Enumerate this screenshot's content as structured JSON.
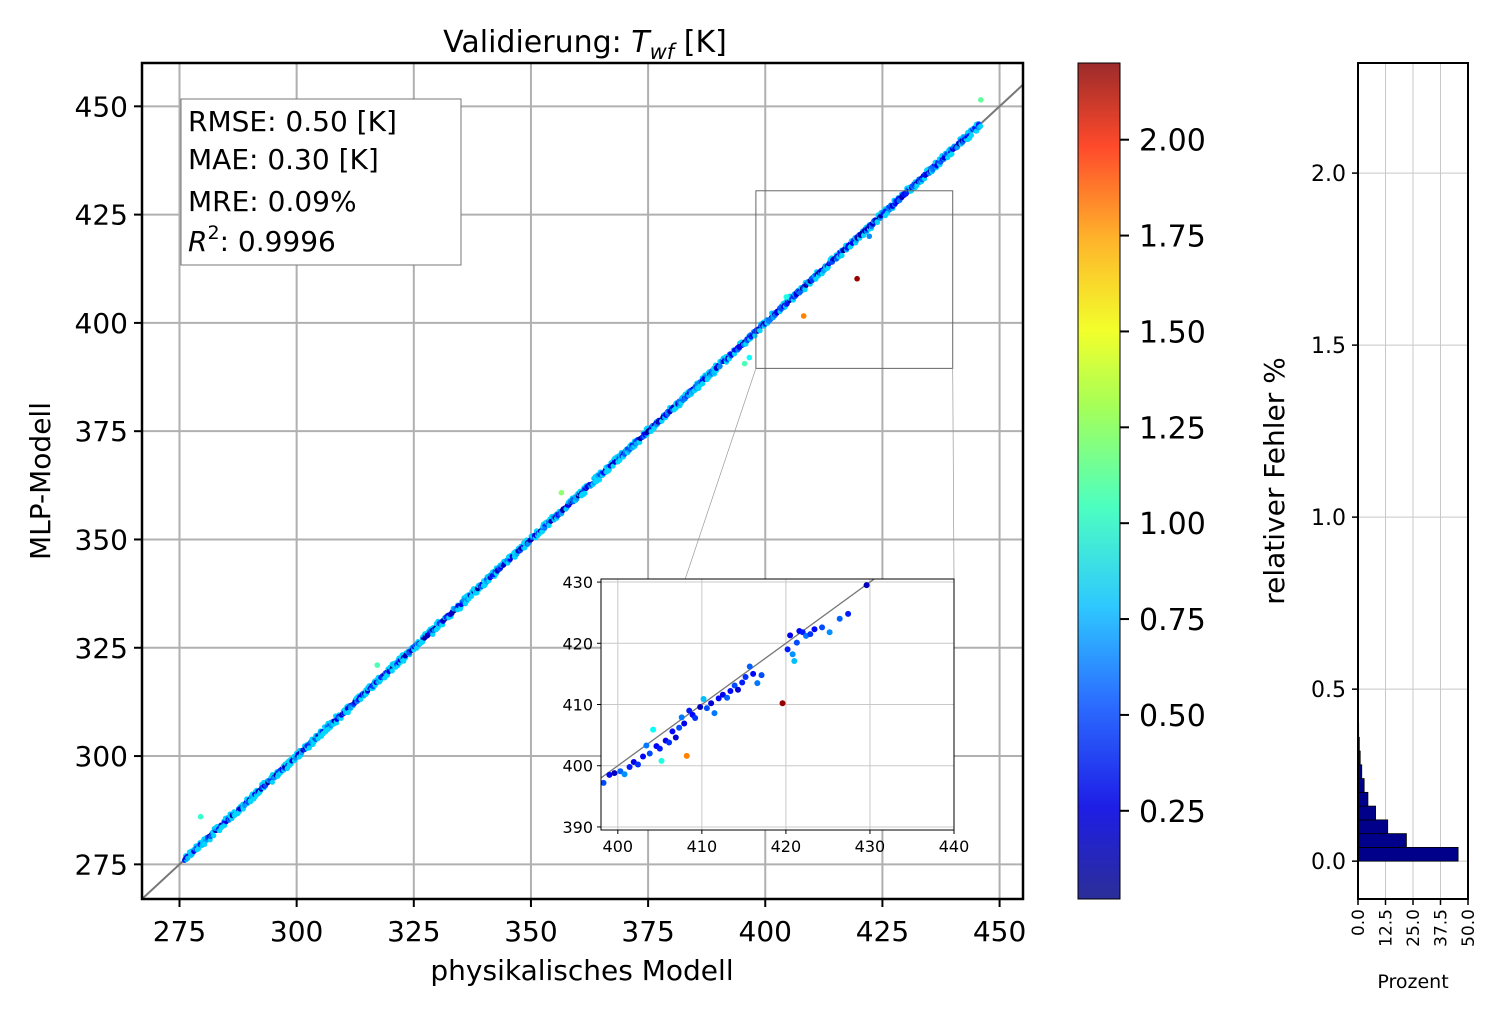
{
  "chart_data": [
    {
      "type": "scatter",
      "title_prefix": "Validierung: ",
      "title_var": "T",
      "title_sub": "wf",
      "title_suffix": " [K]",
      "xlabel": "physikalisches Modell",
      "ylabel": "MLP-Modell",
      "xlim": [
        267,
        455
      ],
      "ylim": [
        267,
        460
      ],
      "xticks": [
        275,
        300,
        325,
        350,
        375,
        400,
        425,
        450
      ],
      "yticks": [
        275,
        300,
        325,
        350,
        375,
        400,
        425,
        450
      ],
      "grid": true,
      "identity_line": true,
      "stats": {
        "rmse": "RMSE: 0.50 [K]",
        "mae": "MAE: 0.30 [K]",
        "mre": "MRE: 0.09%",
        "r2_symbol": "R",
        "r2_exp": "2",
        "r2_value": ": 0.9996"
      },
      "outliers": [
        {
          "x": 419.6,
          "y": 410.2,
          "c": 2.15
        },
        {
          "x": 408.2,
          "y": 401.6,
          "c": 1.65
        },
        {
          "x": 446.0,
          "y": 451.5,
          "c": 1.05
        },
        {
          "x": 395.6,
          "y": 390.6,
          "c": 1.0
        },
        {
          "x": 356.5,
          "y": 360.8,
          "c": 1.15
        },
        {
          "x": 317.2,
          "y": 321.0,
          "c": 1.0
        },
        {
          "x": 279.5,
          "y": 286.0,
          "c": 0.95
        },
        {
          "x": 404.5,
          "y": 406.0,
          "c": 0.9
        },
        {
          "x": 396.6,
          "y": 392.0,
          "c": 0.85
        },
        {
          "x": 422.2,
          "y": 420.0,
          "c": 0.6
        }
      ],
      "zoom_region": {
        "xlim": [
          398,
          440
        ],
        "ylim": [
          389.5,
          430.5
        ]
      }
    },
    {
      "type": "scatter",
      "role": "inset",
      "xlim": [
        398,
        440
      ],
      "ylim": [
        389.5,
        430.5
      ],
      "xticks": [
        400,
        410,
        420,
        430,
        440
      ],
      "yticks": [
        390,
        400,
        410,
        420,
        430
      ],
      "grid": true,
      "points": [
        {
          "x": 398.3,
          "y": 397.2,
          "c": 0.45
        },
        {
          "x": 399.0,
          "y": 398.5,
          "c": 0.3
        },
        {
          "x": 399.6,
          "y": 398.8,
          "c": 0.15
        },
        {
          "x": 400.3,
          "y": 399.1,
          "c": 0.5
        },
        {
          "x": 400.8,
          "y": 398.6,
          "c": 0.6
        },
        {
          "x": 401.4,
          "y": 399.8,
          "c": 0.35
        },
        {
          "x": 401.9,
          "y": 400.6,
          "c": 0.25
        },
        {
          "x": 402.4,
          "y": 400.2,
          "c": 0.4
        },
        {
          "x": 403.0,
          "y": 401.5,
          "c": 0.3
        },
        {
          "x": 403.4,
          "y": 403.3,
          "c": 0.55
        },
        {
          "x": 403.8,
          "y": 402.0,
          "c": 0.45
        },
        {
          "x": 404.2,
          "y": 405.9,
          "c": 0.85
        },
        {
          "x": 404.6,
          "y": 403.2,
          "c": 0.3
        },
        {
          "x": 405.0,
          "y": 402.8,
          "c": 0.35
        },
        {
          "x": 405.2,
          "y": 400.8,
          "c": 0.9
        },
        {
          "x": 405.7,
          "y": 404.1,
          "c": 0.25
        },
        {
          "x": 406.1,
          "y": 403.8,
          "c": 0.4
        },
        {
          "x": 406.5,
          "y": 405.6,
          "c": 0.3
        },
        {
          "x": 406.9,
          "y": 404.6,
          "c": 0.2
        },
        {
          "x": 407.3,
          "y": 406.2,
          "c": 0.45
        },
        {
          "x": 407.6,
          "y": 407.9,
          "c": 0.55
        },
        {
          "x": 407.9,
          "y": 406.9,
          "c": 0.25
        },
        {
          "x": 408.2,
          "y": 401.6,
          "c": 1.65
        },
        {
          "x": 408.5,
          "y": 409.0,
          "c": 0.35
        },
        {
          "x": 408.9,
          "y": 408.3,
          "c": 0.3
        },
        {
          "x": 409.2,
          "y": 407.8,
          "c": 0.4
        },
        {
          "x": 409.8,
          "y": 409.6,
          "c": 0.15
        },
        {
          "x": 410.2,
          "y": 410.9,
          "c": 0.7
        },
        {
          "x": 410.6,
          "y": 409.4,
          "c": 0.45
        },
        {
          "x": 411.1,
          "y": 410.2,
          "c": 0.2
        },
        {
          "x": 411.5,
          "y": 408.6,
          "c": 0.55
        },
        {
          "x": 412.0,
          "y": 411.0,
          "c": 0.3
        },
        {
          "x": 412.5,
          "y": 411.6,
          "c": 0.25
        },
        {
          "x": 413.0,
          "y": 411.1,
          "c": 0.5
        },
        {
          "x": 413.4,
          "y": 412.2,
          "c": 0.3
        },
        {
          "x": 413.9,
          "y": 413.1,
          "c": 0.45
        },
        {
          "x": 414.3,
          "y": 412.4,
          "c": 0.2
        },
        {
          "x": 414.8,
          "y": 413.6,
          "c": 0.35
        },
        {
          "x": 415.2,
          "y": 414.5,
          "c": 0.4
        },
        {
          "x": 415.7,
          "y": 416.2,
          "c": 0.5
        },
        {
          "x": 416.1,
          "y": 415.0,
          "c": 0.3
        },
        {
          "x": 416.6,
          "y": 413.5,
          "c": 0.55
        },
        {
          "x": 417.1,
          "y": 414.8,
          "c": 0.45
        },
        {
          "x": 419.6,
          "y": 410.2,
          "c": 2.15
        },
        {
          "x": 420.2,
          "y": 419.0,
          "c": 0.35
        },
        {
          "x": 420.5,
          "y": 421.3,
          "c": 0.25
        },
        {
          "x": 420.8,
          "y": 418.2,
          "c": 0.6
        },
        {
          "x": 421.0,
          "y": 417.1,
          "c": 0.7
        },
        {
          "x": 421.3,
          "y": 420.1,
          "c": 0.45
        },
        {
          "x": 421.6,
          "y": 422.0,
          "c": 0.3
        },
        {
          "x": 422.0,
          "y": 421.8,
          "c": 0.35
        },
        {
          "x": 422.4,
          "y": 421.2,
          "c": 0.55
        },
        {
          "x": 422.9,
          "y": 421.5,
          "c": 0.4
        },
        {
          "x": 423.4,
          "y": 422.3,
          "c": 0.3
        },
        {
          "x": 424.3,
          "y": 422.6,
          "c": 0.45
        },
        {
          "x": 425.2,
          "y": 421.8,
          "c": 0.6
        },
        {
          "x": 426.4,
          "y": 424.0,
          "c": 0.5
        },
        {
          "x": 427.4,
          "y": 424.8,
          "c": 0.35
        },
        {
          "x": 429.6,
          "y": 429.5,
          "c": 0.15
        }
      ]
    },
    {
      "type": "colorbar",
      "label": "relativer Fehler %",
      "range": [
        0.02,
        2.2
      ],
      "ticks": [
        "0.25",
        "0.50",
        "0.75",
        "1.00",
        "1.25",
        "1.50",
        "1.75",
        "2.00"
      ],
      "colormap": "jet"
    },
    {
      "type": "bar",
      "orientation": "horizontal",
      "xlabel": "Prozent",
      "xlim": [
        0,
        50
      ],
      "ylim": [
        -0.11,
        2.32
      ],
      "xticks": [
        "0.0",
        "12.5",
        "25.0",
        "37.5",
        "50.0"
      ],
      "yticks": [
        "0.0",
        "0.5",
        "1.0",
        "1.5",
        "2.0"
      ],
      "grid": true,
      "bars": [
        {
          "y0": 0.0,
          "y1": 0.04,
          "value": 45.5
        },
        {
          "y0": 0.04,
          "y1": 0.08,
          "value": 22.0
        },
        {
          "y0": 0.08,
          "y1": 0.12,
          "value": 13.5
        },
        {
          "y0": 0.12,
          "y1": 0.16,
          "value": 8.0
        },
        {
          "y0": 0.16,
          "y1": 0.2,
          "value": 4.5
        },
        {
          "y0": 0.2,
          "y1": 0.24,
          "value": 2.8
        },
        {
          "y0": 0.24,
          "y1": 0.28,
          "value": 1.7
        },
        {
          "y0": 0.28,
          "y1": 0.32,
          "value": 1.0
        },
        {
          "y0": 0.32,
          "y1": 0.36,
          "value": 0.6
        },
        {
          "y0": 0.36,
          "y1": 0.4,
          "value": 0.3
        },
        {
          "y0": 0.4,
          "y1": 0.44,
          "value": 0.2
        },
        {
          "y0": 0.44,
          "y1": 0.48,
          "value": 0.1
        }
      ]
    }
  ]
}
